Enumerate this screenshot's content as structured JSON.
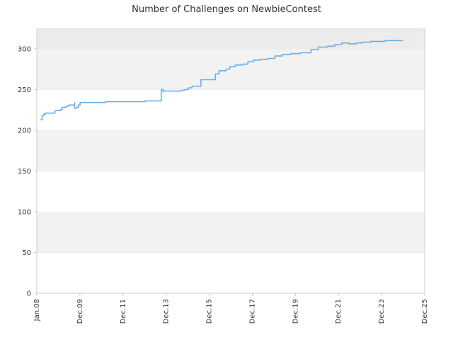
{
  "chart_data": {
    "type": "line",
    "title": "Number of Challenges on NewbieContest",
    "xlabel": "",
    "ylabel": "",
    "ylim": [
      0,
      325
    ],
    "xlim": [
      "2008-01",
      "2025-12"
    ],
    "yticks": [
      0,
      50,
      100,
      150,
      200,
      250,
      300
    ],
    "xticks": [
      "Jan.08",
      "Dec.09",
      "Dec.11",
      "Dec.13",
      "Dec.15",
      "Dec.17",
      "Dec.19",
      "Dec.21",
      "Dec.23",
      "Dec.25"
    ],
    "grid": "horizontal bands",
    "legend": "none",
    "colors": {
      "line": "#6aaee8",
      "band": "#f2f2f2",
      "top_band": "#ececec",
      "axis": "#cccccc"
    },
    "series": [
      {
        "x": [
          "2008-03",
          "2008-04",
          "2008-04",
          "2008-05",
          "2008-06",
          "2008-10",
          "2008-11",
          "2009-02",
          "2009-03",
          "2009-05",
          "2009-06",
          "2009-07",
          "2009-10",
          "2009-10",
          "2009-10",
          "2009-11",
          "2009-12",
          "2010-01",
          "2010-03",
          "2011-03",
          "2012-07",
          "2013-01",
          "2013-07",
          "2013-09",
          "2013-10",
          "2013-10",
          "2013-11",
          "2013-11",
          "2014-07",
          "2014-09",
          "2014-11",
          "2015-01",
          "2015-03",
          "2015-07",
          "2015-08",
          "2016-03",
          "2016-04",
          "2016-06",
          "2016-10",
          "2016-12",
          "2017-03",
          "2017-07",
          "2017-10",
          "2018-01",
          "2018-05",
          "2018-09",
          "2019-01",
          "2019-05",
          "2019-10",
          "2020-03",
          "2020-09",
          "2021-01",
          "2021-06",
          "2021-10",
          "2022-02",
          "2022-06",
          "2022-10",
          "2023-01",
          "2023-06",
          "2024-02",
          "2024-12"
        ],
        "values": [
          213,
          213,
          218,
          220,
          221,
          221,
          224,
          225,
          228,
          229,
          230,
          231,
          231,
          234,
          227,
          228,
          231,
          234,
          234,
          235,
          235,
          236,
          236,
          236,
          238,
          250,
          247,
          248,
          248,
          249,
          250,
          252,
          254,
          254,
          262,
          262,
          269,
          273,
          275,
          278,
          280,
          281,
          284,
          286,
          287,
          288,
          291,
          293,
          294,
          295,
          299,
          302,
          303,
          305,
          307,
          306,
          307,
          308,
          309,
          310,
          310
        ]
      }
    ]
  }
}
